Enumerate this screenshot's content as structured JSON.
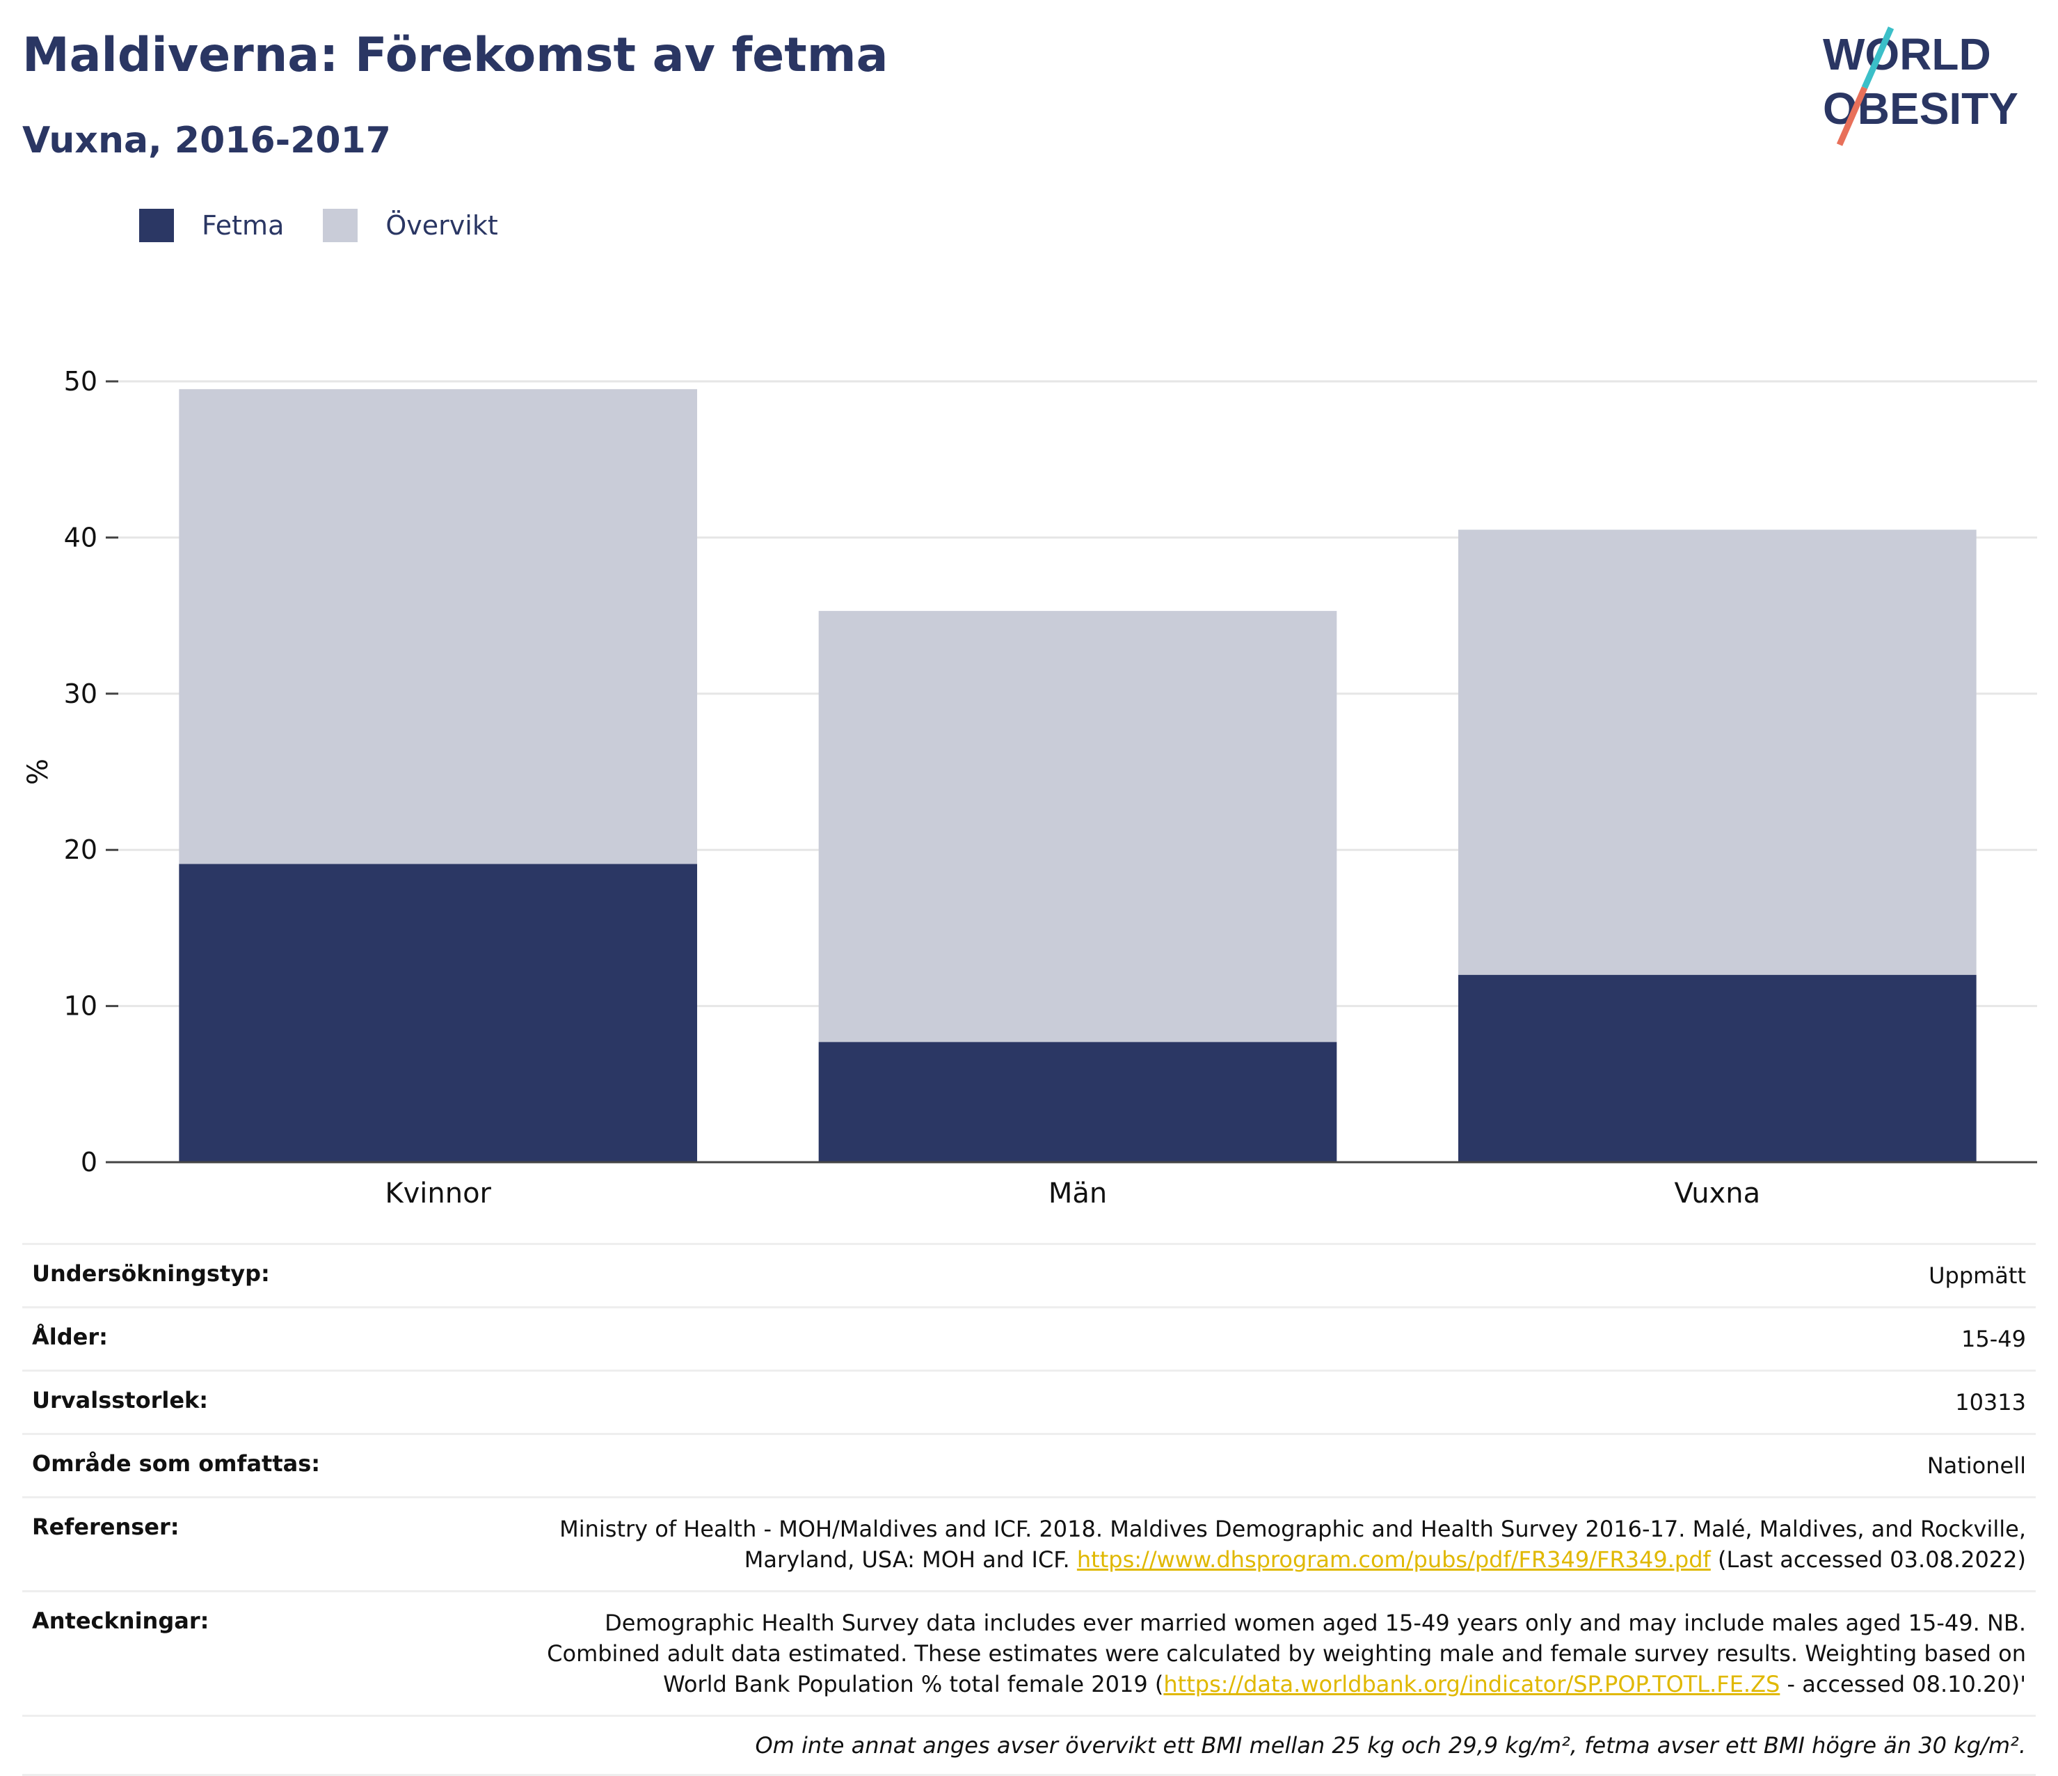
{
  "header": {
    "title": "Maldiverna: Förekomst av fetma",
    "subtitle": "Vuxna, 2016-2017"
  },
  "logo": {
    "line1": "WORLD",
    "line2": "OBESITY",
    "text_color": "#2a3663",
    "slash_colors": [
      "#3bbfc8",
      "#e8705a"
    ]
  },
  "legend": {
    "items": [
      {
        "label": "Fetma",
        "color": "#2b3764"
      },
      {
        "label": "Övervikt",
        "color": "#c9ccd8"
      }
    ]
  },
  "chart_data": {
    "type": "bar",
    "stacked": true,
    "categories": [
      "Kvinnor",
      "Män",
      "Vuxna"
    ],
    "series": [
      {
        "name": "Fetma",
        "color": "#2b3764",
        "values": [
          19.1,
          7.7,
          12.0
        ]
      },
      {
        "name": "Övervikt",
        "color": "#c9ccd8",
        "values": [
          30.4,
          27.6,
          28.5
        ]
      }
    ],
    "ylabel": "%",
    "ylim": [
      0,
      50
    ],
    "yticks": [
      0,
      10,
      20,
      30,
      40,
      50
    ],
    "grid": true,
    "legend_position": "top-left"
  },
  "info": {
    "rows": [
      {
        "key": "Undersökningstyp:",
        "value": "Uppmätt"
      },
      {
        "key": "Ålder:",
        "value": "15-49"
      },
      {
        "key": "Urvalsstorlek:",
        "value": "10313"
      },
      {
        "key": "Område som omfattas:",
        "value": "Nationell"
      }
    ],
    "references": {
      "key": "Referenser:",
      "line1": "Ministry of Health - MOH/Maldives and ICF. 2018. Maldives Demographic and Health Survey 2016-17. Malé, Maldives, and Rockville,",
      "line2_pre": "Maryland, USA: MOH and ICF. ",
      "link": "https://www.dhsprogram.com/pubs/pdf/FR349/FR349.pdf",
      "line2_post": " (Last accessed 03.08.2022)"
    },
    "notes": {
      "key": "Anteckningar:",
      "line1": "Demographic Health Survey data includes ever married women aged 15-49 years only and may include males aged 15-49. NB.",
      "line2": "Combined adult data estimated. These estimates were calculated by weighting male and female survey results. Weighting based on",
      "line3_pre": "World Bank Population % total female 2019 (",
      "link": "https://data.worldbank.org/indicator/SP.POP.TOTL.FE.ZS",
      "line3_post": " - accessed 08.10.20)'"
    },
    "footnote": "Om inte annat anges avser övervikt ett BMI mellan 25 kg och 29,9 kg/m², fetma avser ett BMI högre än 30 kg/m²."
  }
}
